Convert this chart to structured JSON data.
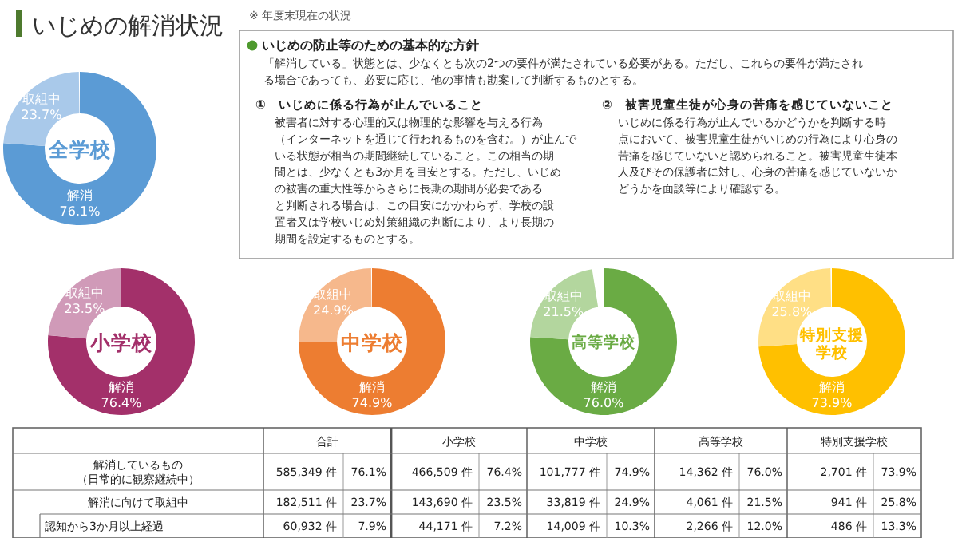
{
  "chart_data": [
    {
      "type": "donut",
      "title": "全学校",
      "categories": [
        "解消",
        "取組中"
      ],
      "values": [
        76.1,
        23.7
      ],
      "value_labels": [
        "76.1%",
        "23.7%"
      ],
      "colors": [
        "#5b9bd5",
        "#a9c9ea"
      ]
    },
    {
      "type": "donut",
      "title": "小学校",
      "categories": [
        "解消",
        "取組中"
      ],
      "values": [
        76.4,
        23.5
      ],
      "value_labels": [
        "76.4%",
        "23.5%"
      ],
      "colors": [
        "#a3306a",
        "#d09ab8"
      ]
    },
    {
      "type": "donut",
      "title": "中学校",
      "categories": [
        "解消",
        "取組中"
      ],
      "values": [
        74.9,
        24.9
      ],
      "value_labels": [
        "74.9%",
        "24.9%"
      ],
      "colors": [
        "#ed7d31",
        "#f6b88c"
      ]
    },
    {
      "type": "donut",
      "title": "高等学校",
      "categories": [
        "解消",
        "取組中"
      ],
      "values": [
        76.0,
        21.5
      ],
      "value_labels": [
        "76.0%",
        "21.5%"
      ],
      "colors": [
        "#6aab44",
        "#b3d69e"
      ]
    },
    {
      "type": "donut",
      "title": "特別支援学校",
      "categories": [
        "解消",
        "取組中"
      ],
      "values": [
        73.9,
        25.8
      ],
      "value_labels": [
        "73.9%",
        "25.8%"
      ],
      "colors": [
        "#ffc000",
        "#ffdf85"
      ]
    },
    {
      "type": "other",
      "title": "いじめの解消状況",
      "subtitle": "※ 年度末現在の状況",
      "annotations": [
        "いじめの防止等のための基本的な方針",
        "「解消している」状態とは、少なくとも次の2つの要件が満たされている必要がある。ただし、これらの要件が満たされ",
        "る場合であっても、必要に応じ、他の事情も勘案して判断するものとする。",
        "①　いじめに係る行為が止んでいること",
        "被害者に対する心理的又は物理的な影響を与える行為",
        "（インターネットを通じて行われるものを含む。）が止んで",
        "いる状態が相当の期間継続していること。この相当の期",
        "間とは、少なくとも3か月を目安とする。ただし、いじめ",
        "の被害の重大性等からさらに長期の期間が必要である",
        "と判断される場合は、この目安にかかわらず、学校の設",
        "置者又は学校いじめ対策組織の判断により、より長期の",
        "期間を設定するものとする。",
        "②　被害児童生徒が心身の苦痛を感じていないこと",
        "いじめに係る行為が止んでいるかどうかを判断する時",
        "点において、被害児童生徒がいじめの行為により心身の",
        "苦痛を感じていないと認められること。被害児童生徒本",
        "人及びその保護者に対し、心身の苦痛を感じていないか",
        "どうかを面談等により確認する。"
      ]
    },
    {
      "type": "other",
      "categories": [
        "合計",
        "小学校",
        "中学校",
        "高等学校",
        "特別支援学校"
      ],
      "y_categories": [
        "解消しているもの（日常的に観察継続中）",
        "解消に向けて取組中",
        "認知から3か月以上経過"
      ],
      "cell_labels": [
        [
          "585,349 件",
          "76.1%",
          "466,509 件",
          "76.4%",
          "101,777 件",
          "74.9%",
          "14,362 件",
          "76.0%",
          "2,701 件",
          "73.9%"
        ],
        [
          "182,511 件",
          "23.7%",
          "143,690 件",
          "23.5%",
          "33,819 件",
          "24.9%",
          "4,061 件",
          "21.5%",
          "941 件",
          "25.8%"
        ],
        [
          "60,932 件",
          "7.9%",
          "44,171 件",
          "7.2%",
          "14,009 件",
          "10.3%",
          "2,266 件",
          "12.0%",
          "486 件",
          "13.3%"
        ]
      ]
    }
  ]
}
